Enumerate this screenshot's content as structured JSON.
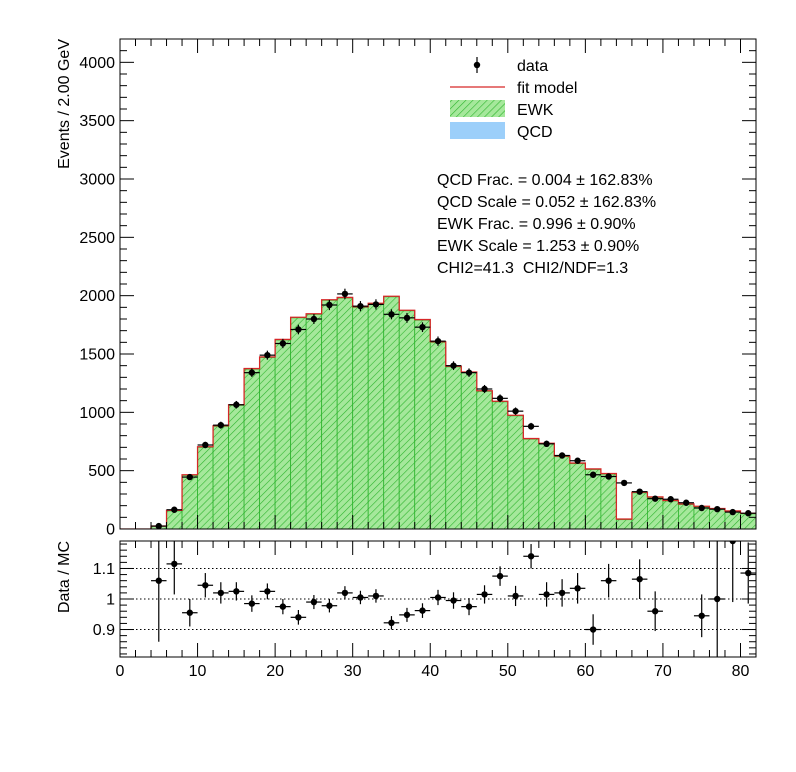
{
  "chart_data": {
    "type": "bar",
    "subtype": "stacked-histogram-with-ratio",
    "bin_width": 2,
    "x_range": [
      0,
      82
    ],
    "xticks": [
      "0",
      "10",
      "20",
      "30",
      "40",
      "50",
      "60",
      "70",
      "80"
    ],
    "top": {
      "ylabel": "Events / 2.00 GeV",
      "ylim": [
        0,
        4200
      ],
      "yticks": [
        "0",
        "500",
        "1000",
        "1500",
        "2000",
        "2500",
        "3000",
        "3500",
        "4000"
      ],
      "legend_position": "top-right",
      "legend": [
        {
          "key": "data",
          "label": "data"
        },
        {
          "key": "fit",
          "label": "fit model"
        },
        {
          "key": "ewk",
          "label": "EWK"
        },
        {
          "key": "qcd",
          "label": "QCD"
        }
      ],
      "fit_info": [
        "QCD Frac. = 0.004 ± 162.83%",
        "QCD Scale = 0.052 ± 162.83%",
        "EWK Frac. = 0.996 ± 0.90%",
        "EWK Scale = 1.253 ± 0.90%",
        "CHI2=41.3  CHI2/NDF=1.3"
      ],
      "bin_centers": [
        1,
        3,
        5,
        7,
        9,
        11,
        13,
        15,
        17,
        19,
        21,
        23,
        25,
        27,
        29,
        31,
        33,
        35,
        37,
        39,
        41,
        43,
        45,
        47,
        49,
        51,
        53,
        55,
        57,
        59,
        61,
        63,
        65,
        67,
        69,
        71,
        73,
        75,
        77,
        79,
        81
      ],
      "ewk_values": [
        0,
        0,
        25,
        155,
        460,
        700,
        880,
        1060,
        1370,
        1470,
        1620,
        1810,
        1840,
        1960,
        1980,
        1900,
        1930,
        1990,
        1870,
        1790,
        1600,
        1390,
        1340,
        1180,
        1090,
        970,
        770,
        730,
        620,
        560,
        510,
        470,
        80,
        310,
        270,
        240,
        210,
        190,
        170,
        150,
        130
      ],
      "fit_values": [
        0,
        0,
        25,
        160,
        465,
        705,
        885,
        1065,
        1375,
        1475,
        1625,
        1815,
        1845,
        1965,
        1985,
        1905,
        1935,
        1995,
        1875,
        1795,
        1605,
        1395,
        1345,
        1185,
        1095,
        975,
        775,
        735,
        625,
        565,
        515,
        475,
        85,
        315,
        275,
        245,
        215,
        195,
        175,
        155,
        135
      ],
      "data_values": [
        0,
        0,
        25,
        165,
        445,
        720,
        890,
        1065,
        1340,
        1490,
        1590,
        1710,
        1800,
        1920,
        2015,
        1910,
        1925,
        1840,
        1810,
        1730,
        1610,
        1400,
        1340,
        1200,
        1120,
        1010,
        880,
        730,
        630,
        585,
        465,
        450,
        395,
        320,
        260,
        255,
        225,
        180,
        170,
        145,
        135
      ]
    },
    "bottom": {
      "ylabel": "Data / MC",
      "ylim": [
        0.81,
        1.19
      ],
      "yticks": [
        "0.9",
        "1",
        "1.1"
      ],
      "ratio_points": [
        {
          "x": 5,
          "y": 1.06,
          "err": 0.2
        },
        {
          "x": 7,
          "y": 1.115,
          "err": 0.1
        },
        {
          "x": 9,
          "y": 0.955,
          "err": 0.045
        },
        {
          "x": 11,
          "y": 1.045,
          "err": 0.04
        },
        {
          "x": 13,
          "y": 1.02,
          "err": 0.035
        },
        {
          "x": 15,
          "y": 1.025,
          "err": 0.03
        },
        {
          "x": 17,
          "y": 0.985,
          "err": 0.027
        },
        {
          "x": 19,
          "y": 1.025,
          "err": 0.026
        },
        {
          "x": 21,
          "y": 0.975,
          "err": 0.025
        },
        {
          "x": 23,
          "y": 0.94,
          "err": 0.024
        },
        {
          "x": 25,
          "y": 0.99,
          "err": 0.023
        },
        {
          "x": 27,
          "y": 0.978,
          "err": 0.022
        },
        {
          "x": 29,
          "y": 1.02,
          "err": 0.022
        },
        {
          "x": 31,
          "y": 1.005,
          "err": 0.022
        },
        {
          "x": 33,
          "y": 1.01,
          "err": 0.022
        },
        {
          "x": 35,
          "y": 0.922,
          "err": 0.022
        },
        {
          "x": 37,
          "y": 0.948,
          "err": 0.023
        },
        {
          "x": 39,
          "y": 0.962,
          "err": 0.024
        },
        {
          "x": 41,
          "y": 1.005,
          "err": 0.025
        },
        {
          "x": 43,
          "y": 0.995,
          "err": 0.027
        },
        {
          "x": 45,
          "y": 0.975,
          "err": 0.028
        },
        {
          "x": 47,
          "y": 1.015,
          "err": 0.03
        },
        {
          "x": 49,
          "y": 1.075,
          "err": 0.032
        },
        {
          "x": 51,
          "y": 1.01,
          "err": 0.033
        },
        {
          "x": 53,
          "y": 1.14,
          "err": 0.04
        },
        {
          "x": 55,
          "y": 1.015,
          "err": 0.04
        },
        {
          "x": 57,
          "y": 1.02,
          "err": 0.045
        },
        {
          "x": 59,
          "y": 1.035,
          "err": 0.05
        },
        {
          "x": 61,
          "y": 0.9,
          "err": 0.05
        },
        {
          "x": 63,
          "y": 1.06,
          "err": 0.055
        },
        {
          "x": 67,
          "y": 1.065,
          "err": 0.065
        },
        {
          "x": 69,
          "y": 0.96,
          "err": 0.065
        },
        {
          "x": 75,
          "y": 0.945,
          "err": 0.07
        },
        {
          "x": 77,
          "y": 1.0,
          "err": 0.2
        },
        {
          "x": 79,
          "y": 1.19,
          "err": 0.2
        },
        {
          "x": 81,
          "y": 1.085,
          "err": 0.1
        }
      ]
    },
    "colors": {
      "ewk_fill": "#a5e89b",
      "ewk_hatch": "#2fb52f",
      "qcd_fill": "#9ccffa",
      "fit_line": "#d62728",
      "data": "#000000",
      "frame": "#000000"
    }
  }
}
